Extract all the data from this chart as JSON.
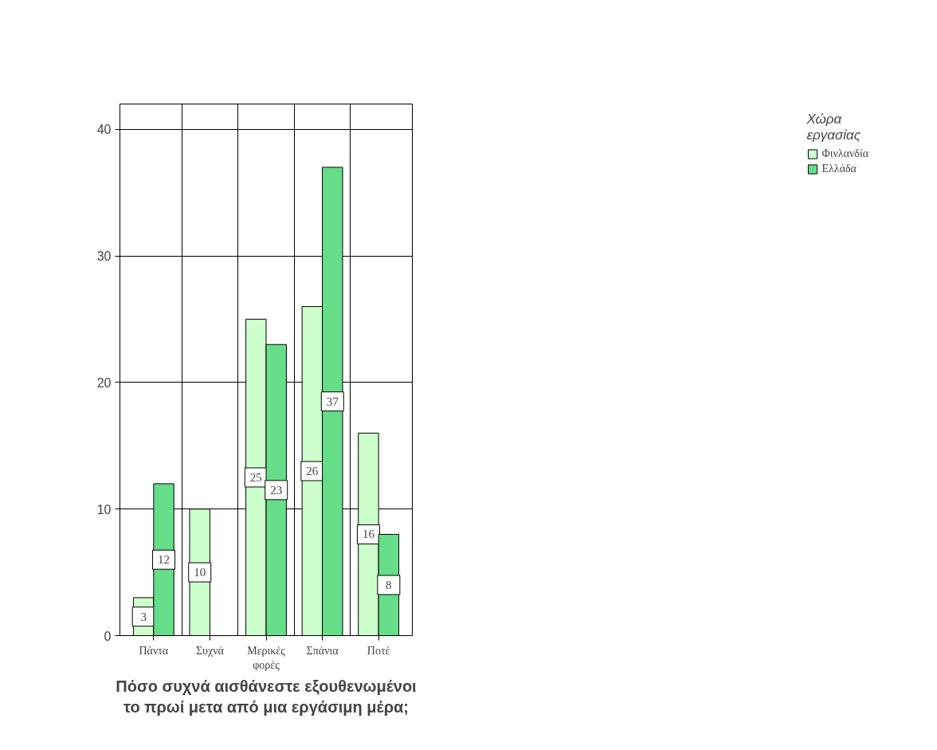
{
  "chart_data": {
    "type": "bar",
    "xlabel": "Πόσο συχνά αισθάνεστε εξουθενωμένοι\nτο πρωί μετα από μια εργάσιμη μέρα;",
    "legend_title": "Χώρα\nεργασίας",
    "categories": [
      "Πάντα",
      "Συχνά",
      "Μερικές φορές",
      "Σπάνια",
      "Ποτέ"
    ],
    "series": [
      {
        "name": "Φινλανδία",
        "color": "#ccffcc",
        "values": [
          3,
          10,
          25,
          26,
          16
        ]
      },
      {
        "name": "Ελλάδα",
        "color": "#66dd88",
        "values": [
          12,
          null,
          23,
          37,
          8
        ]
      }
    ],
    "ylim": [
      0,
      42
    ],
    "yticks": [
      0,
      10,
      20,
      30,
      40
    ],
    "grid": true,
    "legend": "top right",
    "data_labels": true
  }
}
